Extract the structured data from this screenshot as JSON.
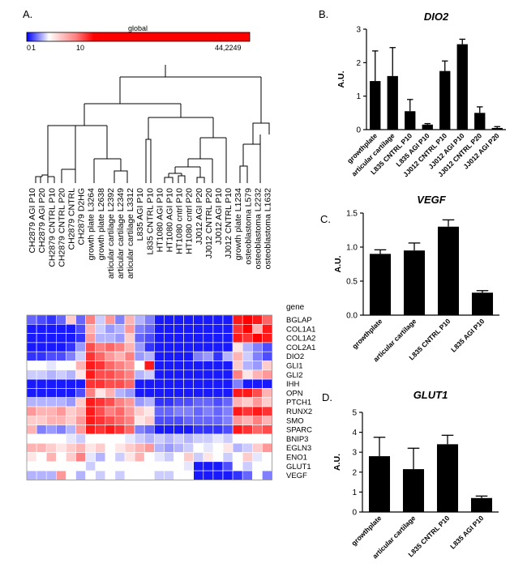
{
  "panel_labels": {
    "a": "A.",
    "b": "B.",
    "c": "C.",
    "d": "D."
  },
  "colorbar": {
    "title": "global",
    "ticks": [
      "0",
      "1",
      "10",
      "44,2249"
    ],
    "low_color": "#0000ff",
    "mid_color": "#ffffff",
    "high_color": "#ff0000"
  },
  "heatmap": {
    "gene_header": "gene",
    "samples": [
      "CH2879 AGI P10",
      "CH2879 AGI P20",
      "CH2879 CNTRL P10",
      "CH2879 CNTRL P20",
      "CH2879 CNTRL",
      "CH2879 D2HG",
      "growth plate L3264",
      "growth plate L2638",
      "articular cartilage L2392",
      "articular cartilage L2349",
      "articular cartilage L3312",
      "L835 AGI P10",
      "L835 CNTRL P10",
      "HT1080 AGI P10",
      "HT1080 AGI P10",
      "HT1080 cntrl P10",
      "HT1080 cntrl P20",
      "JJ012 AGI P20",
      "JJ012 CNTRL P20",
      "JJ012 AGI P10",
      "JJ012 CNTRL P10",
      "growth plate L1234",
      "osteoblastoma L579",
      "osteoblastoma L2232",
      "osteoblastoma L1632"
    ],
    "genes": [
      "BGLAP",
      "COL1A1",
      "COL1A2",
      "COL2A1",
      "DIO2",
      "GLI1",
      "GLI2",
      "IHH",
      "OPN",
      "PTCH1",
      "RUNX2",
      "SMO",
      "SPARC",
      "BNIP3",
      "EGLN3",
      "ENO1",
      "GLUT1",
      "VEGF"
    ],
    "values": [
      [
        -0.6,
        -0.7,
        -0.8,
        -0.6,
        0.2,
        -0.6,
        0.5,
        -0.2,
        0.4,
        -0.5,
        0.3,
        -0.3,
        -0.5,
        -0.9,
        -0.9,
        -0.9,
        -0.9,
        -0.9,
        -0.9,
        -0.9,
        -0.9,
        0.9,
        1.0,
        0.9,
        0.6
      ],
      [
        -0.9,
        -0.9,
        -0.9,
        -0.9,
        -0.9,
        -0.7,
        0.3,
        -0.2,
        -0.4,
        -0.3,
        0.4,
        -0.5,
        -0.6,
        -0.9,
        -0.9,
        -0.9,
        -0.9,
        -0.9,
        -0.9,
        -0.9,
        -0.9,
        0.8,
        1.0,
        0.3,
        0.9
      ],
      [
        -0.9,
        -0.9,
        -0.9,
        -0.9,
        -0.9,
        -0.8,
        0.4,
        -0.3,
        -0.3,
        -0.4,
        0.2,
        -0.6,
        -0.7,
        -0.9,
        -0.9,
        -0.9,
        -0.9,
        -0.9,
        -0.9,
        -0.9,
        -0.9,
        0.9,
        0.8,
        1.0,
        0.9
      ],
      [
        -0.9,
        -0.9,
        -0.9,
        -0.9,
        -0.8,
        -0.4,
        0.7,
        0.5,
        0.6,
        0.5,
        0.3,
        -0.4,
        -0.8,
        -0.9,
        -0.9,
        -0.9,
        -0.9,
        -0.9,
        -0.9,
        -0.9,
        -0.9,
        0.1,
        -0.3,
        -0.5,
        -0.7
      ],
      [
        -0.8,
        -0.8,
        -0.7,
        -0.7,
        -0.5,
        -0.2,
        0.8,
        0.6,
        0.4,
        0.3,
        0.5,
        -0.4,
        -0.3,
        -0.9,
        -0.9,
        -0.9,
        -0.9,
        -0.5,
        -0.4,
        -0.8,
        -0.3,
        0.3,
        -0.2,
        -0.5,
        -0.7
      ],
      [
        0.0,
        0.0,
        -0.1,
        0.0,
        0.0,
        0.3,
        0.9,
        0.8,
        0.6,
        0.5,
        0.4,
        0.0,
        0.9,
        -0.9,
        -0.9,
        -0.9,
        -0.9,
        -0.9,
        -0.9,
        -0.9,
        -0.9,
        0.2,
        -0.3,
        -0.4,
        0.2
      ],
      [
        -0.2,
        -0.2,
        -0.3,
        -0.2,
        -0.3,
        0.1,
        0.9,
        0.7,
        0.7,
        0.6,
        0.5,
        -0.3,
        -0.2,
        -0.9,
        -0.9,
        -0.9,
        -0.9,
        -0.9,
        -0.9,
        -0.9,
        -0.9,
        0.5,
        0.1,
        0.3,
        0.4
      ],
      [
        -0.9,
        -0.9,
        -0.9,
        -0.9,
        -0.9,
        -0.9,
        0.8,
        0.8,
        0.7,
        0.7,
        0.6,
        -0.9,
        -0.9,
        -0.9,
        -0.9,
        -0.9,
        -0.9,
        -0.9,
        -0.9,
        -0.9,
        -0.9,
        -0.5,
        -0.9,
        -0.9,
        -0.9
      ],
      [
        -0.9,
        -0.9,
        -0.9,
        -0.9,
        -0.9,
        -0.7,
        0.5,
        0.1,
        0.3,
        -0.3,
        -0.4,
        -0.9,
        -0.9,
        -0.9,
        -0.9,
        -0.9,
        -0.9,
        -0.9,
        -0.9,
        -0.9,
        -0.9,
        0.9,
        0.9,
        0.7,
        0.3
      ],
      [
        -0.3,
        -0.3,
        -0.3,
        -0.3,
        -0.4,
        0.2,
        0.9,
        0.8,
        0.7,
        0.5,
        0.4,
        -0.4,
        -0.3,
        -0.8,
        -0.8,
        -0.7,
        -0.7,
        -0.6,
        -0.6,
        -0.7,
        -0.6,
        0.3,
        0.2,
        0.4,
        0.2
      ],
      [
        0.4,
        0.3,
        0.3,
        0.4,
        0.2,
        0.3,
        0.9,
        0.7,
        0.5,
        0.6,
        0.4,
        0.2,
        0.1,
        -0.6,
        -0.6,
        -0.5,
        -0.5,
        -0.6,
        -0.5,
        -0.6,
        -0.5,
        0.9,
        0.8,
        0.9,
        0.8
      ],
      [
        0.2,
        0.2,
        0.3,
        0.3,
        0.2,
        0.4,
        0.9,
        0.8,
        0.7,
        0.6,
        0.5,
        0.1,
        0.2,
        -0.7,
        -0.7,
        -0.7,
        -0.6,
        -0.6,
        -0.6,
        -0.6,
        -0.5,
        0.4,
        0.3,
        0.5,
        0.3
      ],
      [
        0.3,
        -0.5,
        -0.4,
        -0.5,
        -0.3,
        0.4,
        0.9,
        0.8,
        0.9,
        0.8,
        0.6,
        -0.5,
        -0.6,
        -0.9,
        -0.9,
        -0.9,
        -0.9,
        -0.8,
        -0.8,
        -0.8,
        -0.7,
        0.9,
        0.8,
        0.6,
        0.7
      ],
      [
        0.0,
        0.0,
        0.0,
        0.0,
        -0.1,
        -0.2,
        0.0,
        0.0,
        0.0,
        0.0,
        -0.1,
        -0.2,
        -0.3,
        -0.2,
        -0.3,
        -0.2,
        -0.3,
        -0.2,
        -0.2,
        -0.1,
        -0.2,
        0.0,
        0.0,
        0.0,
        0.0
      ],
      [
        0.3,
        0.3,
        0.2,
        0.1,
        0.2,
        0.3,
        0.1,
        0.2,
        0.0,
        0.1,
        0.2,
        0.3,
        0.4,
        -0.3,
        -0.4,
        -0.3,
        -0.2,
        0.0,
        -0.1,
        0.0,
        0.1,
        -0.3,
        -0.2,
        0.2,
        0.4
      ],
      [
        0.1,
        0.0,
        0.3,
        0.0,
        0.2,
        0.5,
        -0.1,
        -0.3,
        0.0,
        -0.2,
        0.1,
        0.3,
        0.0,
        -0.1,
        -0.2,
        0.0,
        0.2,
        -0.2,
        0.1,
        0.0,
        -0.2,
        0.0,
        0.2,
        -0.1,
        0.0
      ],
      [
        0.0,
        0.0,
        0.0,
        0.0,
        0.0,
        0.0,
        -0.2,
        0.0,
        0.0,
        0.0,
        0.0,
        0.0,
        0.0,
        0.0,
        0.0,
        0.0,
        -0.1,
        -0.9,
        -0.9,
        -0.9,
        -0.7,
        0.0,
        -0.2,
        0.0,
        0.0
      ],
      [
        -0.3,
        -0.3,
        -0.3,
        0.4,
        0.0,
        -0.3,
        0.0,
        -0.2,
        0.0,
        -0.2,
        0.0,
        0.0,
        0.0,
        -0.2,
        -0.2,
        0.0,
        0.0,
        -0.9,
        -0.9,
        -0.9,
        -0.9,
        -0.8,
        -0.6,
        0.0,
        -0.5
      ]
    ]
  },
  "chart_data": [
    {
      "type": "bar",
      "title": "DIO2",
      "ylabel": "A.U.",
      "ylim": [
        0,
        3
      ],
      "yticks": [
        "0",
        "1",
        "2",
        "3"
      ],
      "categories": [
        "growthplate",
        "articular cartilage",
        "L835 CNTRL P10",
        "L835 AGI P10",
        "JJ012 CNTRL P10",
        "JJ012 AGI P10",
        "JJ012 CNTRL P20",
        "JJ012 AGI P20"
      ],
      "values": [
        1.45,
        1.6,
        0.55,
        0.15,
        1.75,
        2.55,
        0.5,
        0.05
      ],
      "errors": [
        0.9,
        0.85,
        0.35,
        0.03,
        0.3,
        0.15,
        0.18,
        0.04
      ]
    },
    {
      "type": "bar",
      "title": "VEGF",
      "ylabel": "A.U.",
      "ylim": [
        0,
        1.5
      ],
      "yticks": [
        "0.0",
        "0.5",
        "1.0",
        "1.5"
      ],
      "categories": [
        "growthplate",
        "articular cartilage",
        "L835 CNTRL P10",
        "L835 AGI P10"
      ],
      "values": [
        0.9,
        0.95,
        1.3,
        0.33
      ],
      "errors": [
        0.06,
        0.11,
        0.1,
        0.03
      ]
    },
    {
      "type": "bar",
      "title": "GLUT1",
      "ylabel": "A.U.",
      "ylim": [
        0,
        5
      ],
      "yticks": [
        "0",
        "1",
        "2",
        "3",
        "4",
        "5"
      ],
      "categories": [
        "growthplate",
        "articular cartilage",
        "L835 CNTRL P10",
        "L835 AGI P10"
      ],
      "values": [
        2.8,
        2.15,
        3.4,
        0.7
      ],
      "errors": [
        0.95,
        1.05,
        0.45,
        0.1
      ]
    }
  ]
}
